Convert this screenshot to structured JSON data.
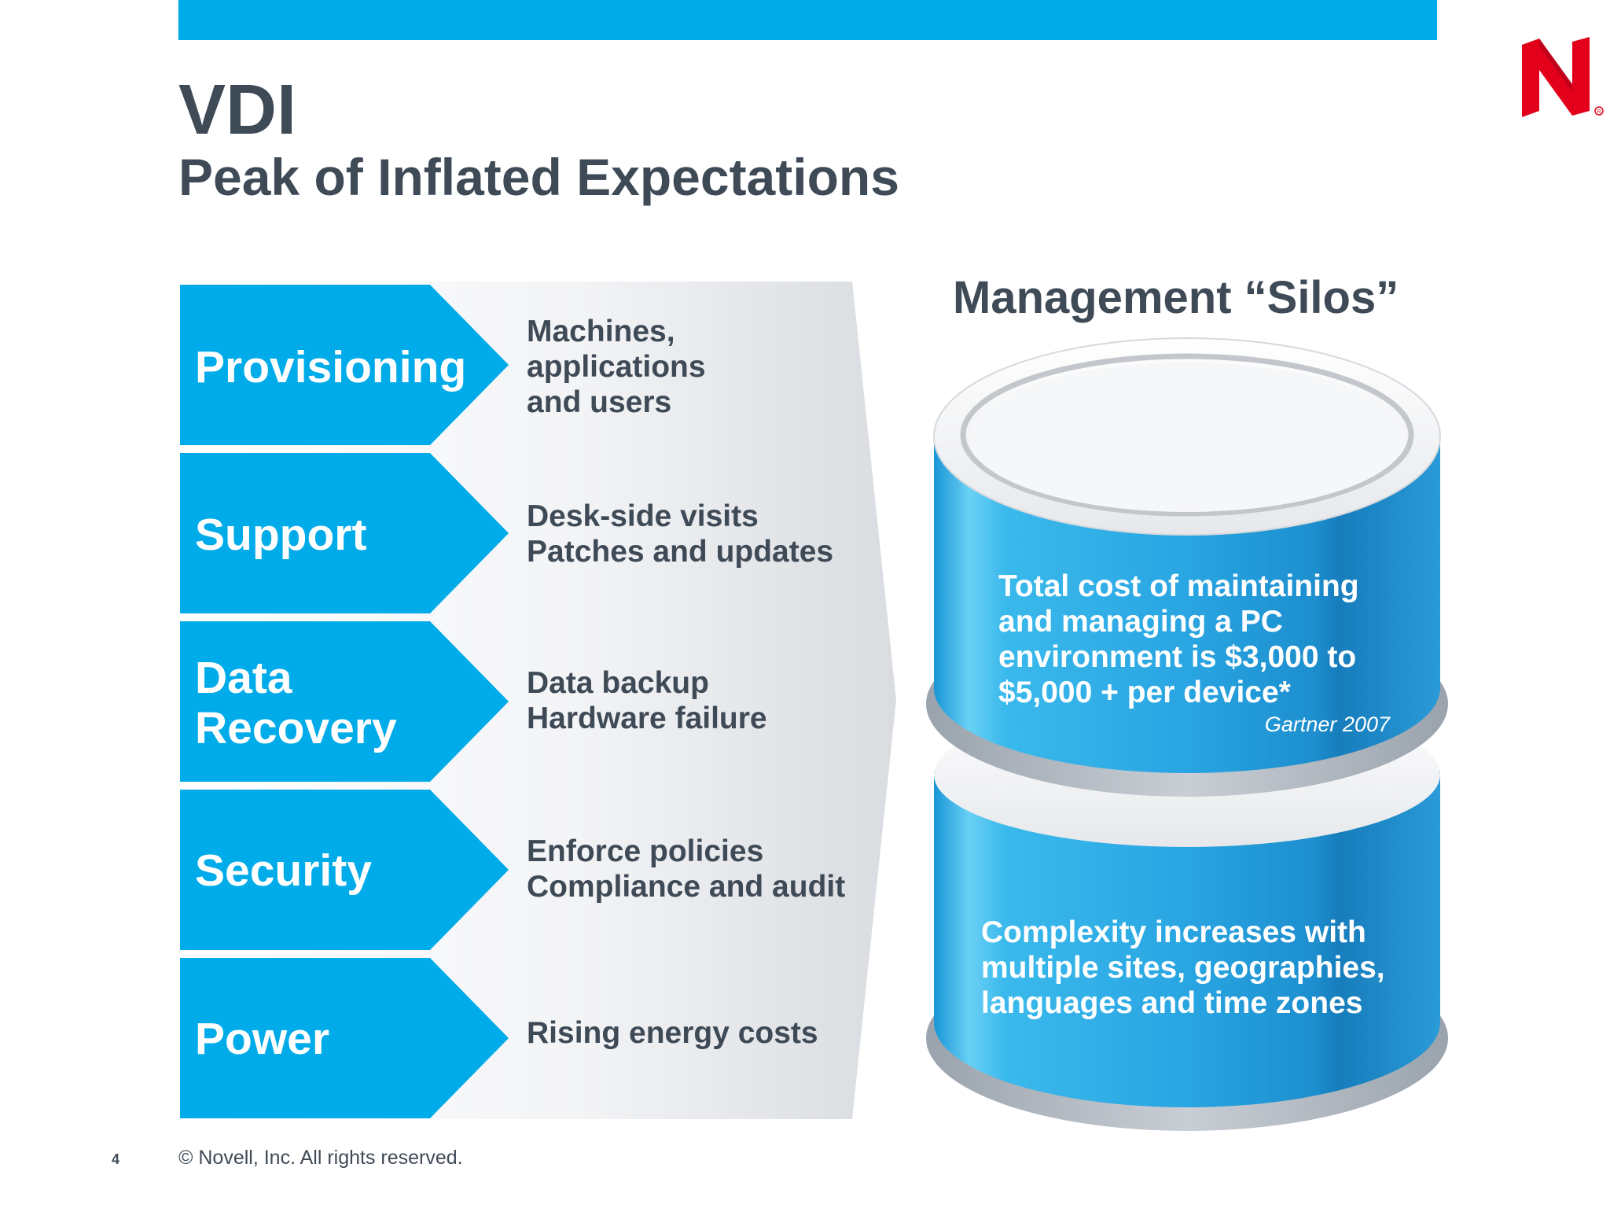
{
  "slide": {
    "title": "VDI",
    "subtitle": "Peak of Inflated Expectations"
  },
  "rows": [
    {
      "label": [
        "Provisioning"
      ],
      "desc": [
        "Machines,",
        "applications",
        "and users"
      ]
    },
    {
      "label": [
        "Support"
      ],
      "desc": [
        "Desk-side visits",
        "Patches and updates"
      ]
    },
    {
      "label": [
        "Data",
        "Recovery"
      ],
      "desc": [
        "Data backup",
        "Hardware failure"
      ]
    },
    {
      "label": [
        "Security"
      ],
      "desc": [
        "Enforce policies",
        "Compliance and audit"
      ]
    },
    {
      "label": [
        "Power"
      ],
      "desc": [
        "Rising energy costs"
      ]
    }
  ],
  "silos": {
    "heading": "Management “Silos”",
    "top_text": [
      "Total cost of maintaining",
      "and managing a PC",
      "environment is $3,000 to",
      "$5,000 + per device*"
    ],
    "source": "Gartner 2007",
    "bottom_text": [
      "Complexity increases with",
      "multiple sites, geographies,",
      "languages and time zones"
    ]
  },
  "footer": {
    "page_number": "4",
    "copyright": "©  Novell, Inc.  All rights reserved."
  },
  "colors": {
    "accent_blue": "#00abe9",
    "text_gray": "#3f4a57",
    "logo_red": "#e3001b"
  },
  "icons": {
    "logo": "novell-n-logo"
  }
}
